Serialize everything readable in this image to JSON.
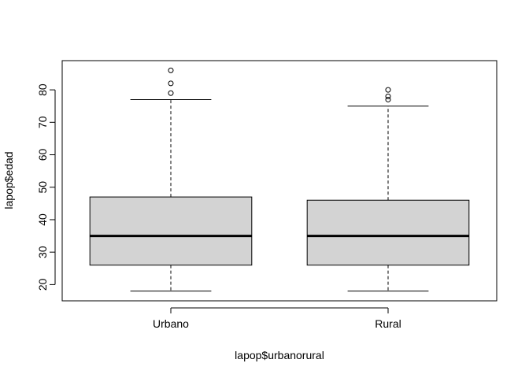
{
  "chart_data": {
    "type": "boxplot",
    "title": "",
    "xlabel": "lapop$urbanorural",
    "ylabel": "lapop$edad",
    "ylim": [
      15,
      89
    ],
    "yticks": [
      20,
      30,
      40,
      50,
      60,
      70,
      80
    ],
    "grid": false,
    "legend": "none",
    "box_color": "#d3d3d3",
    "categories": [
      "Urbano",
      "Rural"
    ],
    "boxes": [
      {
        "category": "Urbano",
        "whisker_low": 18,
        "q1": 26,
        "median": 35,
        "q3": 47,
        "whisker_high": 77,
        "outliers": [
          79,
          82,
          86
        ]
      },
      {
        "category": "Rural",
        "whisker_low": 18,
        "q1": 26,
        "median": 35,
        "q3": 46,
        "whisker_high": 75,
        "outliers": [
          77,
          78,
          80
        ]
      }
    ]
  }
}
